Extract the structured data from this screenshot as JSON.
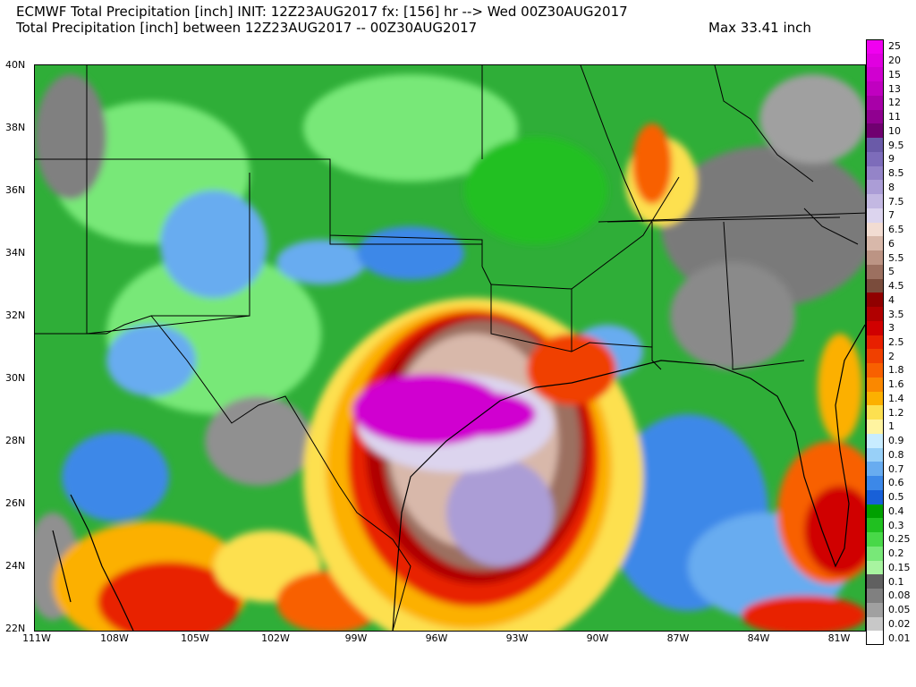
{
  "header": {
    "line1": "ECMWF Total Precipitation [inch] INIT: 12Z23AUG2017 fx: [156] hr --> Wed 00Z30AUG2017",
    "line2": "Total Precipitation [inch] between 12Z23AUG2017 -- 00Z30AUG2017",
    "max": "Max 33.41 inch"
  },
  "axes": {
    "lat_labels": [
      "40N",
      "38N",
      "36N",
      "34N",
      "32N",
      "30N",
      "28N",
      "26N",
      "24N",
      "22N"
    ],
    "lon_labels": [
      "111W",
      "108W",
      "105W",
      "102W",
      "99W",
      "96W",
      "93W",
      "90W",
      "87W",
      "84W",
      "81W"
    ]
  },
  "colorbar": {
    "levels": [
      {
        "label": "25",
        "color": "#f000f0"
      },
      {
        "label": "20",
        "color": "#e000e0"
      },
      {
        "label": "15",
        "color": "#d000d0"
      },
      {
        "label": "13",
        "color": "#c000c0"
      },
      {
        "label": "12",
        "color": "#a800a8"
      },
      {
        "label": "11",
        "color": "#900090"
      },
      {
        "label": "10",
        "color": "#700070"
      },
      {
        "label": "9.5",
        "color": "#6a5aa8"
      },
      {
        "label": "9",
        "color": "#7d6cba"
      },
      {
        "label": "8.5",
        "color": "#9484c8"
      },
      {
        "label": "8",
        "color": "#ab9dd6"
      },
      {
        "label": "7.5",
        "color": "#c3b8e2"
      },
      {
        "label": "7",
        "color": "#dcd4ee"
      },
      {
        "label": "6.5",
        "color": "#f2dcd2"
      },
      {
        "label": "6",
        "color": "#d8b8aa"
      },
      {
        "label": "5.5",
        "color": "#bc9484"
      },
      {
        "label": "5",
        "color": "#9c7060"
      },
      {
        "label": "4.5",
        "color": "#7a4c3c"
      },
      {
        "label": "4",
        "color": "#900000"
      },
      {
        "label": "3.5",
        "color": "#b00000"
      },
      {
        "label": "3",
        "color": "#d00000"
      },
      {
        "label": "2.5",
        "color": "#e82000"
      },
      {
        "label": "2",
        "color": "#f04000"
      },
      {
        "label": "1.8",
        "color": "#f86000"
      },
      {
        "label": "1.6",
        "color": "#fa8800"
      },
      {
        "label": "1.4",
        "color": "#fcb000"
      },
      {
        "label": "1.2",
        "color": "#fde050"
      },
      {
        "label": "1",
        "color": "#fff4a0"
      },
      {
        "label": "0.9",
        "color": "#c8ecff"
      },
      {
        "label": "0.8",
        "color": "#98d0f8"
      },
      {
        "label": "0.7",
        "color": "#68acf0"
      },
      {
        "label": "0.6",
        "color": "#3c88e8"
      },
      {
        "label": "0.5",
        "color": "#1860d8"
      },
      {
        "label": "0.4",
        "color": "#00a000"
      },
      {
        "label": "0.3",
        "color": "#20c020"
      },
      {
        "label": "0.25",
        "color": "#48d848"
      },
      {
        "label": "0.2",
        "color": "#78e878"
      },
      {
        "label": "0.15",
        "color": "#a8f4a0"
      },
      {
        "label": "0.1",
        "color": "#606060"
      },
      {
        "label": "0.08",
        "color": "#808080"
      },
      {
        "label": "0.05",
        "color": "#a0a0a0"
      },
      {
        "label": "0.02",
        "color": "#c8c8c8"
      },
      {
        "label": "0.01",
        "color": "#ffffff"
      }
    ]
  }
}
